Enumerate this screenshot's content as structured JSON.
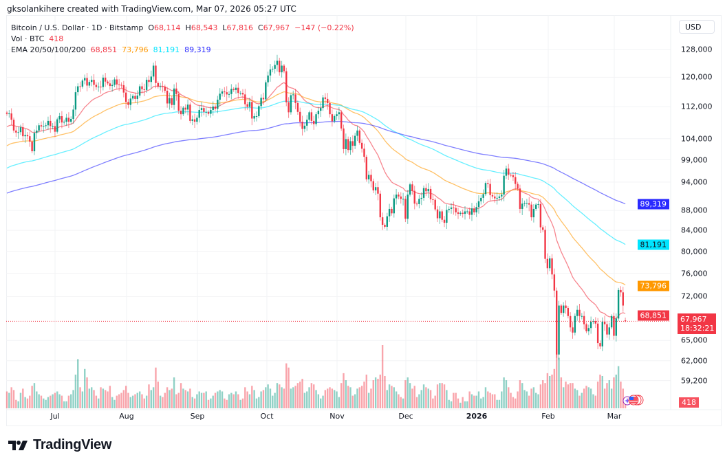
{
  "header": {
    "attribution": "gksolankihere created with TradingView.com, Mar 07, 2026 05:27 UTC"
  },
  "legend": {
    "symbol": "Bitcoin / U.S. Dollar · 1D · Bitstamp",
    "o_label": "O",
    "o": "68,114",
    "h_label": "H",
    "h": "68,543",
    "l_label": "L",
    "l": "67,816",
    "c_label": "C",
    "c": "67,967",
    "change": "−147 (−0.22%)",
    "vol_label": "Vol · BTC",
    "vol": "418",
    "ema_label": "EMA 20/50/100/200",
    "ema_values": [
      "68,851",
      "73,796",
      "81,191",
      "89,319"
    ]
  },
  "price_axis": {
    "currency": "USD",
    "ticks": [
      {
        "label": "128,000",
        "value": 128000
      },
      {
        "label": "120,000",
        "value": 120000
      },
      {
        "label": "112,000",
        "value": 112000
      },
      {
        "label": "104,000",
        "value": 104000
      },
      {
        "label": "99,000",
        "value": 99000
      },
      {
        "label": "94,000",
        "value": 94000
      },
      {
        "label": "88,000",
        "value": 88000
      },
      {
        "label": "84,000",
        "value": 84000
      },
      {
        "label": "80,000",
        "value": 80000
      },
      {
        "label": "76,000",
        "value": 76000
      },
      {
        "label": "72,000",
        "value": 72000
      },
      {
        "label": "65,000",
        "value": 65000
      },
      {
        "label": "62,000",
        "value": 62000
      },
      {
        "label": "59,200",
        "value": 59200
      }
    ],
    "last_price": "67,967",
    "countdown": "18:32:21",
    "volume_label": "418"
  },
  "time_axis": {
    "ticks": [
      "Jul",
      "Aug",
      "Sep",
      "Oct",
      "Nov",
      "Dec",
      "2026",
      "Feb",
      "Mar"
    ]
  },
  "branding": {
    "logo_text": "TradingView"
  },
  "colors": {
    "up": "#089981",
    "down": "#f23645",
    "ema20": "#f23645",
    "ema50": "#ff9800",
    "ema100": "#00e5ff",
    "ema200": "#2a2aff",
    "grid": "#f2f3f5"
  },
  "chart_data": {
    "type": "candlestick",
    "title": "Bitcoin / U.S. Dollar · 1D · Bitstamp",
    "log_scale": true,
    "grid": true,
    "ylim": [
      55400,
      138700
    ],
    "last_candle": {
      "open": 68114,
      "high": 68543,
      "low": 67816,
      "close": 67967,
      "volume": 418
    },
    "closes": [
      110200,
      110300,
      108700,
      106000,
      105500,
      105600,
      106800,
      104600,
      104900,
      104600,
      103300,
      101000,
      105400,
      106000,
      107300,
      107000,
      107100,
      107300,
      108400,
      107100,
      107100,
      105700,
      108800,
      109600,
      108000,
      108200,
      109200,
      108200,
      108900,
      111300,
      115900,
      117500,
      117400,
      119100,
      119800,
      117700,
      118700,
      119300,
      117900,
      117300,
      117400,
      117300,
      119900,
      118800,
      118300,
      117600,
      117900,
      119400,
      118000,
      117900,
      117800,
      115800,
      113300,
      112500,
      114200,
      114900,
      114100,
      115000,
      117500,
      116700,
      116500,
      119300,
      118700,
      120200,
      123300,
      118400,
      117400,
      117500,
      117400,
      116300,
      112900,
      114300,
      112500,
      116900,
      115400,
      111000,
      110100,
      111800,
      111300,
      112600,
      108400,
      108800,
      108200,
      109200,
      111200,
      111700,
      110700,
      110700,
      110200,
      111200,
      112100,
      111500,
      113900,
      115500,
      116100,
      115900,
      115300,
      115400,
      116800,
      116500,
      117100,
      115700,
      115700,
      115300,
      112700,
      112000,
      113300,
      109000,
      109600,
      109600,
      112200,
      114400,
      114000,
      118600,
      120500,
      122200,
      122400,
      123500,
      124700,
      121400,
      123300,
      121700,
      113200,
      110600,
      115100,
      115300,
      113000,
      110700,
      108200,
      106400,
      107200,
      108700,
      110600,
      108400,
      107600,
      110100,
      111000,
      111700,
      114500,
      114100,
      113000,
      110100,
      108300,
      109600,
      110100,
      110600,
      106500,
      101500,
      103900,
      101300,
      103400,
      102300,
      104700,
      106000,
      103000,
      101600,
      99700,
      94600,
      95600,
      94200,
      92200,
      92900,
      91500,
      86600,
      85100,
      84700,
      86800,
      88300,
      87400,
      90500,
      91300,
      90900,
      90400,
      90400,
      86300,
      91300,
      93500,
      92100,
      89400,
      89300,
      90400,
      90600,
      92700,
      92000,
      92500,
      90300,
      90200,
      88200,
      86400,
      87800,
      86100,
      85500,
      88100,
      88300,
      88600,
      88500,
      87600,
      87300,
      87500,
      87300,
      87800,
      87800,
      87100,
      88400,
      87600,
      88700,
      89900,
      90600,
      91400,
      93800,
      93600,
      91200,
      90900,
      90500,
      90600,
      90900,
      91300,
      95400,
      97000,
      95600,
      95500,
      95100,
      93600,
      92600,
      88300,
      89400,
      89500,
      89500,
      89200,
      86600,
      88300,
      89200,
      89300,
      84600,
      84100,
      78600,
      76900,
      78700,
      75800,
      73000,
      62900,
      70500,
      69300,
      70500,
      70100,
      68800,
      67000,
      66200,
      68800,
      69800,
      68800,
      68800,
      67500,
      66400,
      66900,
      67900,
      68000,
      67600,
      64600,
      64100,
      67900,
      67500,
      65900,
      67000,
      68800,
      65700,
      68400,
      73100,
      72700,
      70500,
      67967
    ],
    "volumes": [
      1200,
      1100,
      1500,
      1300,
      600,
      500,
      1100,
      1400,
      800,
      700,
      900,
      1600,
      1800,
      1200,
      1000,
      900,
      700,
      600,
      800,
      900,
      1000,
      1100,
      1200,
      1000,
      900,
      500,
      500,
      900,
      1000,
      1300,
      2400,
      3500,
      1500,
      1200,
      2800,
      2200,
      1400,
      1500,
      1300,
      900,
      700,
      1500,
      1400,
      1300,
      1200,
      1600,
      800,
      600,
      900,
      1000,
      1100,
      1300,
      1600,
      1100,
      800,
      900,
      1000,
      1100,
      1200,
      1000,
      700,
      900,
      1700,
      1300,
      1500,
      2900,
      1900,
      900,
      800,
      1100,
      1500,
      1300,
      1400,
      2200,
      1000,
      1100,
      1800,
      1400,
      1300,
      1200,
      1400,
      800,
      700,
      1000,
      1200,
      1100,
      1100,
      1200,
      600,
      700,
      900,
      1100,
      1200,
      1300,
      1200,
      700,
      600,
      1000,
      1100,
      1000,
      1200,
      1000,
      600,
      700,
      1500,
      1200,
      1000,
      1600,
      1300,
      700,
      800,
      1200,
      1300,
      1500,
      1700,
      1400,
      900,
      1100,
      1800,
      1700,
      1500,
      1400,
      3200,
      2900,
      1400,
      1500,
      1600,
      1800,
      1900,
      2100,
      1100,
      1200,
      1500,
      1800,
      1700,
      1300,
      1000,
      700,
      900,
      1300,
      1400,
      1500,
      1400,
      1300,
      1200,
      800,
      1800,
      2500,
      2000,
      1600,
      1500,
      900,
      1000,
      1400,
      1500,
      1600,
      1900,
      2400,
      1100,
      1400,
      2000,
      2200,
      2100,
      2400,
      4500,
      2300,
      1300,
      1700,
      1600,
      1500,
      1200,
      1000,
      800,
      700,
      2000,
      2200,
      1800,
      1400,
      1600,
      800,
      1000,
      1300,
      1700,
      1500,
      1400,
      1300,
      700,
      900,
      1700,
      1800,
      1800,
      1700,
      1300,
      600,
      500,
      1100,
      1100,
      700,
      400,
      800,
      500,
      500,
      1200,
      1000,
      900,
      900,
      1200,
      700,
      800,
      1500,
      1200,
      1100,
      1000,
      1000,
      600,
      600,
      1200,
      2200,
      2000,
      1500,
      1100,
      800,
      700,
      1200,
      2000,
      1800,
      1300,
      1200,
      900,
      1400,
      1500,
      1100,
      1000,
      1700,
      2000,
      1800,
      2500,
      2300,
      2400,
      2800,
      4200,
      3600,
      2200,
      1500,
      1900,
      1700,
      1800,
      1800,
      1400,
      1300,
      900,
      1100,
      1400,
      1600,
      1500,
      1400,
      1000,
      900,
      1900,
      2400,
      2300,
      1400,
      1800,
      2000,
      1400,
      2200,
      2400,
      3000,
      1900,
      1400,
      418
    ],
    "ema": [
      {
        "period": 20,
        "start": 106900,
        "last": 68851,
        "label": "68,851",
        "color": "#f23645"
      },
      {
        "period": 50,
        "start": 102300,
        "last": 73796,
        "label": "73,796",
        "color": "#ff9800"
      },
      {
        "period": 100,
        "start": 97100,
        "last": 81191,
        "label": "81,191",
        "color": "#00e5ff"
      },
      {
        "period": 200,
        "start": 91600,
        "last": 89319,
        "label": "89,319",
        "color": "#2a2aff"
      }
    ]
  }
}
